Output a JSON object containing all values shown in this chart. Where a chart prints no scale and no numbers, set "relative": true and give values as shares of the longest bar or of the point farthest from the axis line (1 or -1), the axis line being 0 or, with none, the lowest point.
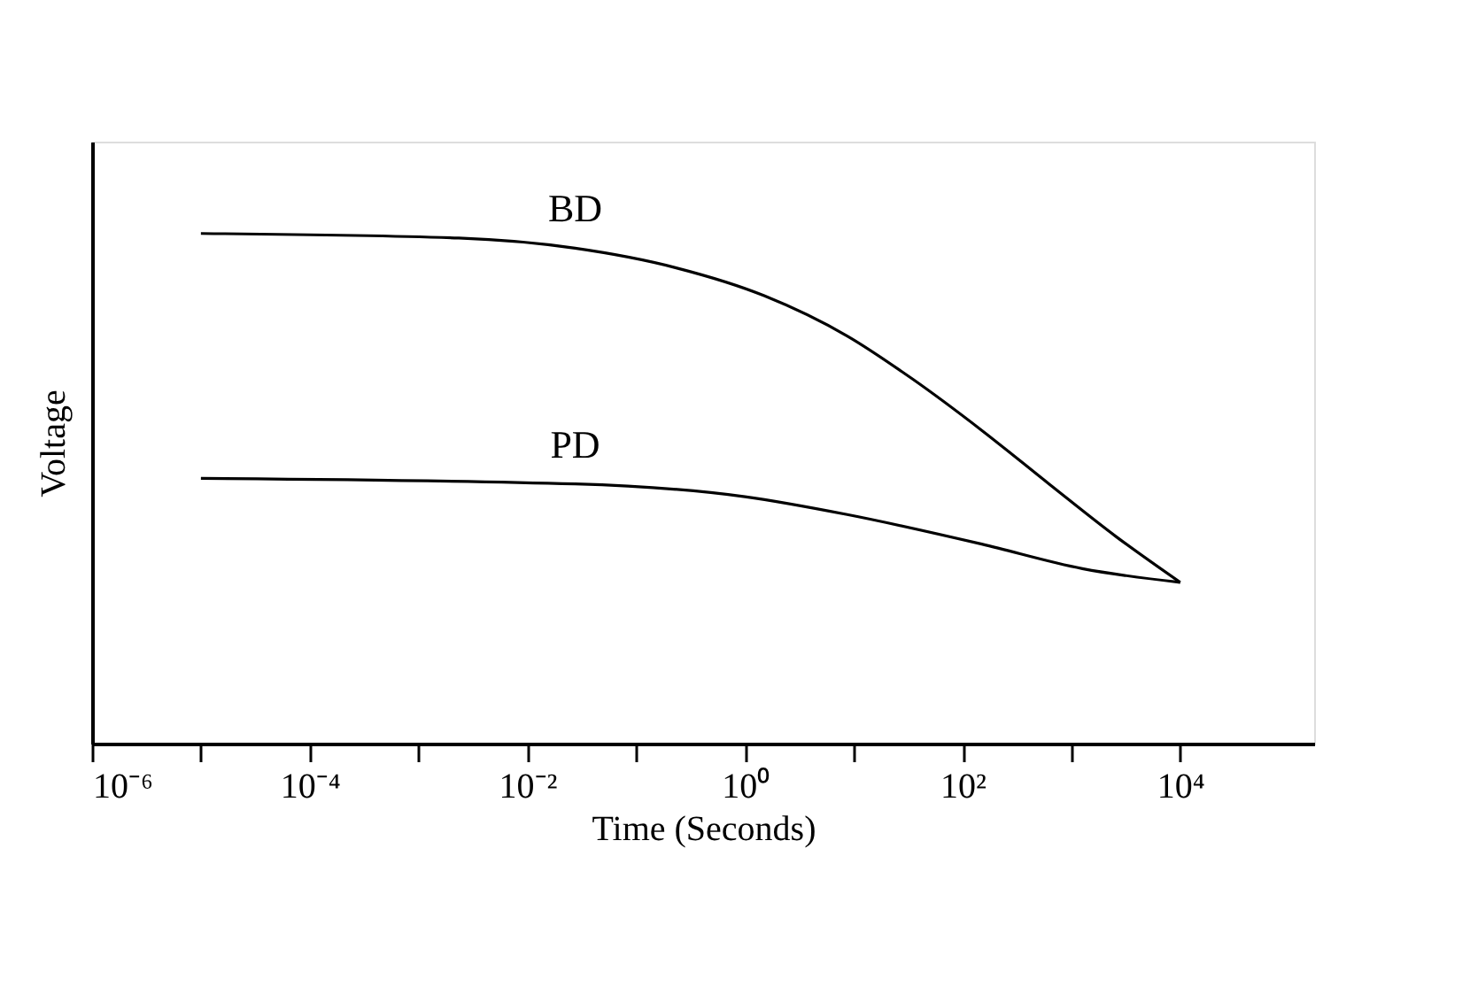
{
  "chart_data": {
    "type": "line",
    "xlabel": "Time (Seconds)",
    "ylabel": "Voltage",
    "log": "x",
    "relative": true,
    "grid": false,
    "legend": false,
    "tick_labels": "x",
    "marker": "none",
    "line_style": "solid",
    "xlim": [
      1e-06,
      170000
    ],
    "xticks": [
      {
        "value": 1e-06,
        "label": "10⁻⁶"
      },
      {
        "value": 1e-05,
        "label": null
      },
      {
        "value": 0.0001,
        "label": "10⁻⁴"
      },
      {
        "value": 0.001,
        "label": null
      },
      {
        "value": 0.01,
        "label": "10⁻²"
      },
      {
        "value": 0.1,
        "label": null
      },
      {
        "value": 1,
        "label": "10⁰"
      },
      {
        "value": 10,
        "label": null
      },
      {
        "value": 100,
        "label": "10²"
      },
      {
        "value": 1000,
        "label": null
      },
      {
        "value": 10000,
        "label": "10⁴"
      }
    ],
    "series": [
      {
        "name": "BD",
        "color": "#000000",
        "x": [
          1e-05,
          0.00234,
          0.0275,
          0.229,
          1.5,
          8.7,
          35,
          150,
          630,
          2600,
          10000
        ],
        "values": [
          1,
          0.991,
          0.971,
          0.933,
          0.878,
          0.799,
          0.714,
          0.614,
          0.508,
          0.405,
          0.316
        ]
      },
      {
        "name": "PD",
        "color": "#000000",
        "x": [
          1e-05,
          0.0275,
          1.0,
          8.7,
          150,
          1260,
          10000
        ],
        "values": [
          0.52,
          0.509,
          0.484,
          0.449,
          0.391,
          0.343,
          0.316
        ]
      }
    ]
  }
}
